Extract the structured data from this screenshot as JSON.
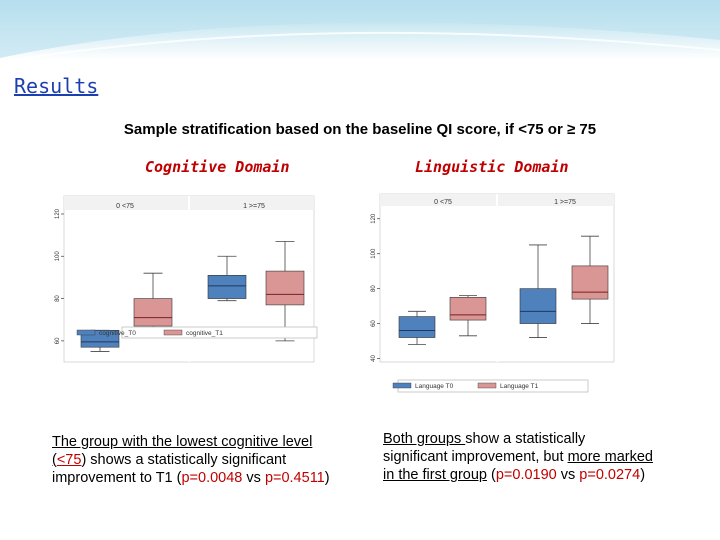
{
  "header": {
    "title": "Results"
  },
  "subtitle": "Sample stratification based on the baseline QI score, if <75 or ≥ 75",
  "domains": {
    "cognitive": "Cognitive Domain",
    "linguistic": "Linguistic Domain"
  },
  "colors": {
    "t0": "#4f81bd",
    "t1": "#d99694",
    "median_t0": "#1f3864",
    "median_t1": "#7b1f1f",
    "title_red": "#c00000",
    "results_blue": "#1a3fb0"
  },
  "chart_data": [
    {
      "type": "box",
      "panels": [
        "0 <75",
        "1 >=75"
      ],
      "ylim": [
        50,
        120
      ],
      "yticks": [
        60,
        80,
        100,
        120
      ],
      "series": [
        {
          "name": "cognitive_T0",
          "boxes": [
            {
              "panel": "0 <75",
              "min": 55,
              "q1": 57,
              "median": 59.5,
              "q3": 65,
              "max": 65
            },
            {
              "panel": "1 >=75",
              "min": 79,
              "q1": 80,
              "median": 86,
              "q3": 91,
              "max": 100
            }
          ]
        },
        {
          "name": "cognitive_T1",
          "boxes": [
            {
              "panel": "0 <75",
              "min": 65,
              "q1": 67,
              "median": 71,
              "q3": 80,
              "max": 92
            },
            {
              "panel": "1 >=75",
              "min": 60,
              "q1": 77,
              "median": 82,
              "q3": 93,
              "max": 107
            }
          ]
        }
      ]
    },
    {
      "type": "box",
      "panels": [
        "0 <75",
        "1 >=75"
      ],
      "ylim": [
        38,
        125
      ],
      "yticks": [
        40,
        60,
        80,
        100,
        120
      ],
      "series": [
        {
          "name": "Language T0",
          "boxes": [
            {
              "panel": "0 <75",
              "min": 48,
              "q1": 52,
              "median": 56,
              "q3": 64,
              "max": 67
            },
            {
              "panel": "1 >=75",
              "min": 52,
              "q1": 60,
              "median": 67,
              "q3": 80,
              "max": 105
            }
          ]
        },
        {
          "name": "Language T1",
          "boxes": [
            {
              "panel": "0 <75",
              "min": 53,
              "q1": 62,
              "median": 65,
              "q3": 75,
              "max": 76
            },
            {
              "panel": "1 >=75",
              "min": 60,
              "q1": 74,
              "median": 78,
              "q3": 93,
              "max": 110
            }
          ]
        }
      ]
    }
  ],
  "captions": {
    "left": {
      "p1": "The group with the lowest cognitive level (",
      "p2": "<75",
      "p3": ") shows a statistically significant improvement to T1 (",
      "p4": "p=0.0048",
      "p5": "  vs  ",
      "p6": "p=0.4511",
      "p7": ")"
    },
    "right": {
      "p1": "Both groups ",
      "p2": "show a statistically significant improvement, but ",
      "p3": "more marked in the first group",
      "p4": " (",
      "p5": "p=0.0190",
      "p6": "  vs  ",
      "p7": "p=0.0274",
      "p8": ")"
    }
  }
}
